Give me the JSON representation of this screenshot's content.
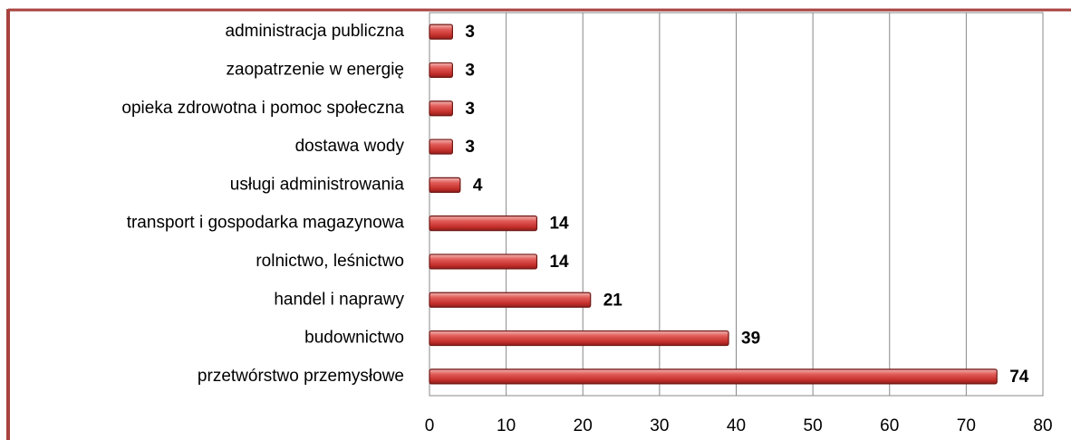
{
  "chart_data": {
    "type": "bar",
    "orientation": "horizontal",
    "categories": [
      "administracja publiczna",
      "zaopatrzenie w energię",
      "opieka zdrowotna i pomoc społeczna",
      "dostawa wody",
      "usługi administrowania",
      "transport i gospodarka magazynowa",
      "rolnictwo, leśnictwo",
      "handel i naprawy",
      "budownictwo",
      "przetwórstwo przemysłowe"
    ],
    "values": [
      3,
      3,
      3,
      3,
      4,
      14,
      14,
      21,
      39,
      74
    ],
    "color": "#d9423f",
    "xlim": [
      0,
      80
    ],
    "xticks": [
      0,
      10,
      20,
      30,
      40,
      50,
      60,
      70,
      80
    ],
    "grid": true
  }
}
